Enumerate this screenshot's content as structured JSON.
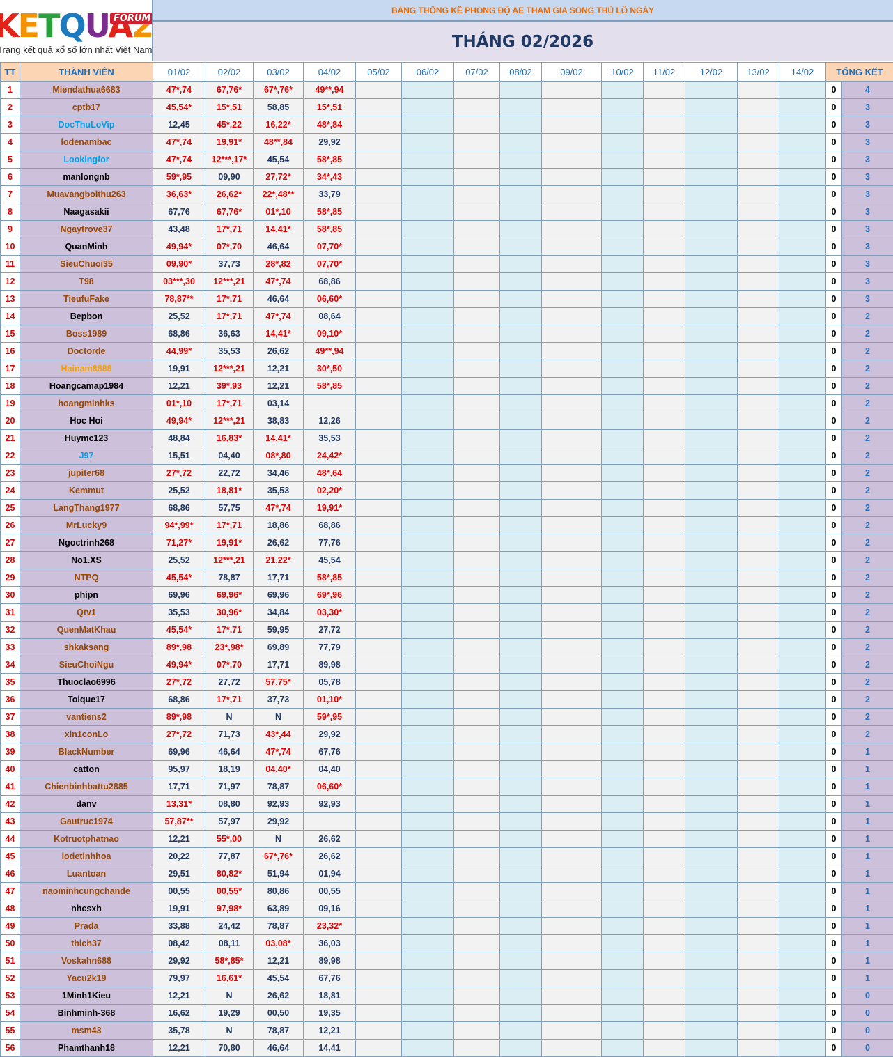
{
  "logo": {
    "text": "KETQUA2",
    "badge": "FORUM",
    "tagline": "Trang kết quả xổ số lớn nhất Việt Nam"
  },
  "header": {
    "title": "BẢNG THỐNG KÊ PHONG ĐỘ AE THAM GIA SONG THỦ LÔ NGÀY",
    "subtitle": "THÁNG 02/2026"
  },
  "table": {
    "columns": [
      "TT",
      "THÀNH VIÊN",
      "01/02",
      "02/02",
      "03/02",
      "04/02",
      "05/02",
      "06/02",
      "07/02",
      "08/02",
      "09/02",
      "10/02",
      "11/02",
      "12/02",
      "13/02",
      "14/02",
      "TỔNG KẾT"
    ],
    "rows": [
      [
        1,
        "Miendathua6683",
        "47*,74",
        "67,76*",
        "67*,76*",
        "49**,94",
        0,
        4
      ],
      [
        2,
        "cptb17",
        "45,54*",
        "15*,51",
        "58,85",
        "15*,51",
        0,
        3
      ],
      [
        3,
        "DocThuLoVip",
        "12,45",
        "45*,22",
        "16,22*",
        "48*,84",
        0,
        3
      ],
      [
        4,
        "lodenambac",
        "47*,74",
        "19,91*",
        "48**,84",
        "29,92",
        0,
        3
      ],
      [
        5,
        "Lookingfor",
        "47*,74",
        "12***,17*",
        "45,54",
        "58*,85",
        0,
        3
      ],
      [
        6,
        "manlongnb",
        "59*,95",
        "09,90",
        "27,72*",
        "34*,43",
        0,
        3
      ],
      [
        7,
        "Muavangboithu263",
        "36,63*",
        "26,62*",
        "22*,48**",
        "33,79",
        0,
        3
      ],
      [
        8,
        "Naagasakii",
        "67,76",
        "67,76*",
        "01*,10",
        "58*,85",
        0,
        3
      ],
      [
        9,
        "Ngaytrove37",
        "43,48",
        "17*,71",
        "14,41*",
        "58*,85",
        0,
        3
      ],
      [
        10,
        "QuanMinh",
        "49,94*",
        "07*,70",
        "46,64",
        "07,70*",
        0,
        3
      ],
      [
        11,
        "SieuChuoi35",
        "09,90*",
        "37,73",
        "28*,82",
        "07,70*",
        0,
        3
      ],
      [
        12,
        "T98",
        "03***,30",
        "12***,21",
        "47*,74",
        "68,86",
        0,
        3
      ],
      [
        13,
        "TieufuFake",
        "78,87**",
        "17*,71",
        "46,64",
        "06,60*",
        0,
        3
      ],
      [
        14,
        "Bepbon",
        "25,52",
        "17*,71",
        "47*,74",
        "08,64",
        0,
        2
      ],
      [
        15,
        "Boss1989",
        "68,86",
        "36,63",
        "14,41*",
        "09,10*",
        0,
        2
      ],
      [
        16,
        "Doctorde",
        "44,99*",
        "35,53",
        "26,62",
        "49**,94",
        0,
        2
      ],
      [
        17,
        "Hainam8888",
        "19,91",
        "12***,21",
        "12,21",
        "30*,50",
        0,
        2
      ],
      [
        18,
        "Hoangcamap1984",
        "12,21",
        "39*,93",
        "12,21",
        "58*,85",
        0,
        2
      ],
      [
        19,
        "hoangminhks",
        "01*,10",
        "17*,71",
        "03,14",
        null,
        0,
        2
      ],
      [
        20,
        "Hoc Hoi",
        "49,94*",
        "12***,21",
        "38,83",
        "12,26",
        0,
        2
      ],
      [
        21,
        "Huymc123",
        "48,84",
        "16,83*",
        "14,41*",
        "35,53",
        0,
        2
      ],
      [
        22,
        "J97",
        "15,51",
        "04,40",
        "08*,80",
        "24,42*",
        0,
        2
      ],
      [
        23,
        "jupiter68",
        "27*,72",
        "22,72",
        "34,46",
        "48*,64",
        0,
        2
      ],
      [
        24,
        "Kemmut",
        "25,52",
        "18,81*",
        "35,53",
        "02,20*",
        0,
        2
      ],
      [
        25,
        "LangThang1977",
        "68,86",
        "57,75",
        "47*,74",
        "19,91*",
        0,
        2
      ],
      [
        26,
        "MrLucky9",
        "94*,99*",
        "17*,71",
        "18,86",
        "68,86",
        0,
        2
      ],
      [
        27,
        "Ngoctrinh268",
        "71,27*",
        "19,91*",
        "26,62",
        "77,76",
        0,
        2
      ],
      [
        28,
        "No1.XS",
        "25,52",
        "12***,21",
        "21,22*",
        "45,54",
        0,
        2
      ],
      [
        29,
        "NTPQ",
        "45,54*",
        "78,87",
        "17,71",
        "58*,85",
        0,
        2
      ],
      [
        30,
        "phipn",
        "69,96",
        "69,96*",
        "69,96",
        "69*,96",
        0,
        2
      ],
      [
        31,
        "Qtv1",
        "35,53",
        "30,96*",
        "34,84",
        "03,30*",
        0,
        2
      ],
      [
        32,
        "QuenMatKhau",
        "45,54*",
        "17*,71",
        "59,95",
        "27,72",
        0,
        2
      ],
      [
        33,
        "shkaksang",
        "89*,98",
        "23*,98*",
        "69,89",
        "77,79",
        0,
        2
      ],
      [
        34,
        "SieuChoiNgu",
        "49,94*",
        "07*,70",
        "17,71",
        "89,98",
        0,
        2
      ],
      [
        35,
        "Thuoclao6996",
        "27*,72",
        "27,72",
        "57,75*",
        "05,78",
        0,
        2
      ],
      [
        36,
        "Toique17",
        "68,86",
        "17*,71",
        "37,73",
        "01,10*",
        0,
        2
      ],
      [
        37,
        "vantiens2",
        "89*,98",
        "N",
        "N",
        "59*,95",
        0,
        2
      ],
      [
        38,
        "xin1conLo",
        "27*,72",
        "71,73",
        "43*,44",
        "29,92",
        0,
        2
      ],
      [
        39,
        "BlackNumber",
        "69,96",
        "46,64",
        "47*,74",
        "67,76",
        0,
        1
      ],
      [
        40,
        "catton",
        "95,97",
        "18,19",
        "04,40*",
        "04,40",
        0,
        1
      ],
      [
        41,
        "Chienbinhbattu2885",
        "17,71",
        "71,97",
        "78,87",
        "06,60*",
        0,
        1
      ],
      [
        42,
        "danv",
        "13,31*",
        "08,80",
        "92,93",
        "92,93",
        0,
        1
      ],
      [
        43,
        "Gautruc1974",
        "57,87**",
        "57,97",
        "29,92",
        null,
        0,
        1
      ],
      [
        44,
        "Kotruotphatnao",
        "12,21",
        "55*,00",
        "N",
        "26,62",
        0,
        1
      ],
      [
        45,
        "lodetinhhoa",
        "20,22",
        "77,87",
        "67*,76*",
        "26,62",
        0,
        1
      ],
      [
        46,
        "Luantoan",
        "29,51",
        "80,82*",
        "51,94",
        "01,94",
        0,
        1
      ],
      [
        47,
        "naominhcungchande",
        "00,55",
        "00,55*",
        "80,86",
        "00,55",
        0,
        1
      ],
      [
        48,
        "nhcsxh",
        "19,91",
        "97,98*",
        "63,89",
        "09,16",
        0,
        1
      ],
      [
        49,
        "Prada",
        "33,88",
        "24,42",
        "78,87",
        "23,32*",
        0,
        1
      ],
      [
        50,
        "thich37",
        "08,42",
        "08,11",
        "03,08*",
        "36,03",
        0,
        1
      ],
      [
        51,
        "Voskahn688",
        "29,92",
        "58*,85*",
        "12,21",
        "89,98",
        0,
        1
      ],
      [
        52,
        "Yacu2k19",
        "79,97",
        "16,61*",
        "45,54",
        "67,76",
        0,
        1
      ],
      [
        53,
        "1Minh1Kieu",
        "12,21",
        "N",
        "26,62",
        "18,81",
        0,
        0
      ],
      [
        54,
        "Binhminh-368",
        "16,62",
        "19,29",
        "00,50",
        "19,35",
        0,
        0
      ],
      [
        55,
        "msm43",
        "35,78",
        "N",
        "78,87",
        "12,21",
        0,
        0
      ],
      [
        56,
        "Phamthanh18",
        "12,21",
        "70,80",
        "46,64",
        "14,41",
        0,
        0
      ]
    ],
    "name_colors": [
      "#974706",
      "#974706",
      "#00a0e8",
      "#974706",
      "#00a0e8",
      "#000000",
      "#974706",
      "#000000",
      "#974706",
      "#000000",
      "#974706",
      "#974706",
      "#974706",
      "#000000",
      "#974706",
      "#974706",
      "#f5a000",
      "#000000",
      "#974706",
      "#000000",
      "#000000",
      "#00a0e8",
      "#974706",
      "#974706",
      "#974706",
      "#974706",
      "#000000",
      "#000000",
      "#974706",
      "#000000",
      "#974706",
      "#974706",
      "#974706",
      "#974706",
      "#000000",
      "#000000",
      "#974706",
      "#974706",
      "#974706",
      "#000000",
      "#974706",
      "#000000",
      "#974706",
      "#974706",
      "#974706",
      "#974706",
      "#974706",
      "#000000",
      "#974706",
      "#974706",
      "#974706",
      "#974706",
      "#000000",
      "#000000",
      "#974706",
      "#000000"
    ]
  }
}
